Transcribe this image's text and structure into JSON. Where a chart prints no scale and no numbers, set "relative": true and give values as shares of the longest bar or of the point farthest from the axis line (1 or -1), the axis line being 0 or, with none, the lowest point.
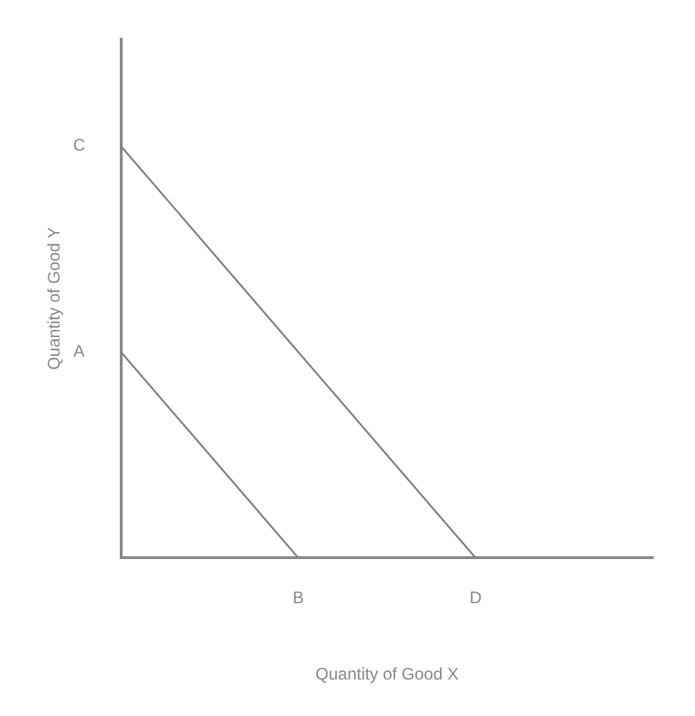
{
  "chart_data": {
    "type": "line",
    "xlabel": "Quantity of Good X",
    "ylabel": "Quantity of Good Y",
    "relative": true,
    "categories": [
      null,
      "B",
      "D",
      null
    ],
    "series": [
      {
        "color": "#7f7f7f",
        "values": [
          0.5,
          0,
          null,
          null
        ]
      },
      {
        "color": "#7f7f7f",
        "values": [
          1,
          0.5,
          0,
          null
        ]
      }
    ],
    "annotations": [
      "A",
      "C"
    ],
    "grid": false,
    "legend": false,
    "marker": "none",
    "line_style": "solid"
  }
}
